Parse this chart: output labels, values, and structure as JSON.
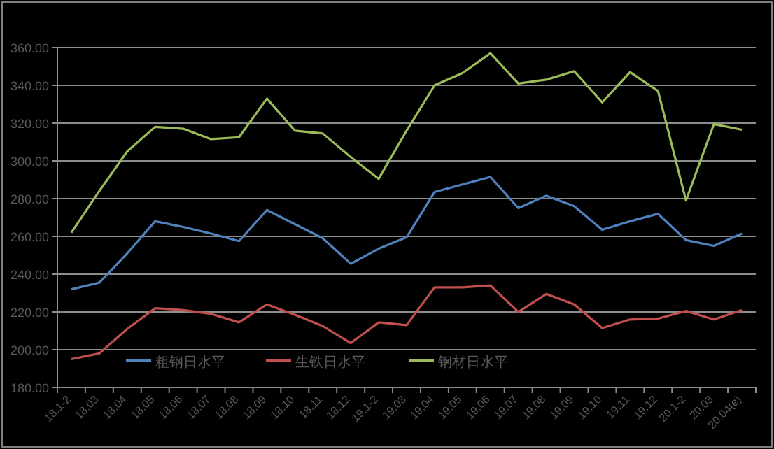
{
  "chart_data": {
    "type": "line",
    "categories": [
      "18.1-2",
      "18.03",
      "18.04",
      "18.05",
      "18.06",
      "18.07",
      "18.08",
      "18.09",
      "18.10",
      "18.11",
      "18.12",
      "19.1-2",
      "19.03",
      "19.04",
      "19.05",
      "19.06",
      "19.07",
      "19.08",
      "19.09",
      "19.10",
      "19.11",
      "19.12",
      "20.1-2",
      "20.03",
      "20.04(e)"
    ],
    "series": [
      {
        "name": "粗钢日水平",
        "color": "#4f81bd",
        "values": [
          232,
          235.5,
          251,
          268,
          265,
          261.5,
          257.5,
          274,
          266.5,
          259,
          245.5,
          253.5,
          259.5,
          283.5,
          287.5,
          291.5,
          275,
          281.5,
          276,
          263.5,
          268,
          272,
          258,
          255,
          261.5
        ]
      },
      {
        "name": "生铁日水平",
        "color": "#c0504d",
        "values": [
          195,
          198,
          211,
          222,
          221,
          219,
          214.5,
          224,
          218.5,
          212.5,
          203.5,
          214.5,
          213,
          233,
          233,
          234,
          220,
          229.5,
          224,
          211.5,
          216,
          216.5,
          220.5,
          216,
          221
        ]
      },
      {
        "name": "钢材日水平",
        "color": "#9bbb59",
        "values": [
          262,
          284,
          305,
          318,
          317,
          311.5,
          312.5,
          333,
          316,
          314.5,
          302,
          290.5,
          316,
          340,
          346.5,
          357,
          341,
          343,
          347.5,
          331,
          347,
          337,
          279,
          319.5,
          316.5
        ]
      }
    ],
    "ylim": [
      180,
      360
    ],
    "yticks": [
      {
        "value": 180,
        "label": "180.00"
      },
      {
        "value": 200,
        "label": "200.00"
      },
      {
        "value": 220,
        "label": "220.00"
      },
      {
        "value": 240,
        "label": "240.00"
      },
      {
        "value": 260,
        "label": "260.00"
      },
      {
        "value": 280,
        "label": "280.00"
      },
      {
        "value": 300,
        "label": "300.00"
      },
      {
        "value": 320,
        "label": "320.00"
      },
      {
        "value": 340,
        "label": "340.00"
      },
      {
        "value": 360,
        "label": "360.00"
      }
    ],
    "grid": "y",
    "legend": "bottom",
    "marker": "none",
    "line_style": "solid"
  }
}
